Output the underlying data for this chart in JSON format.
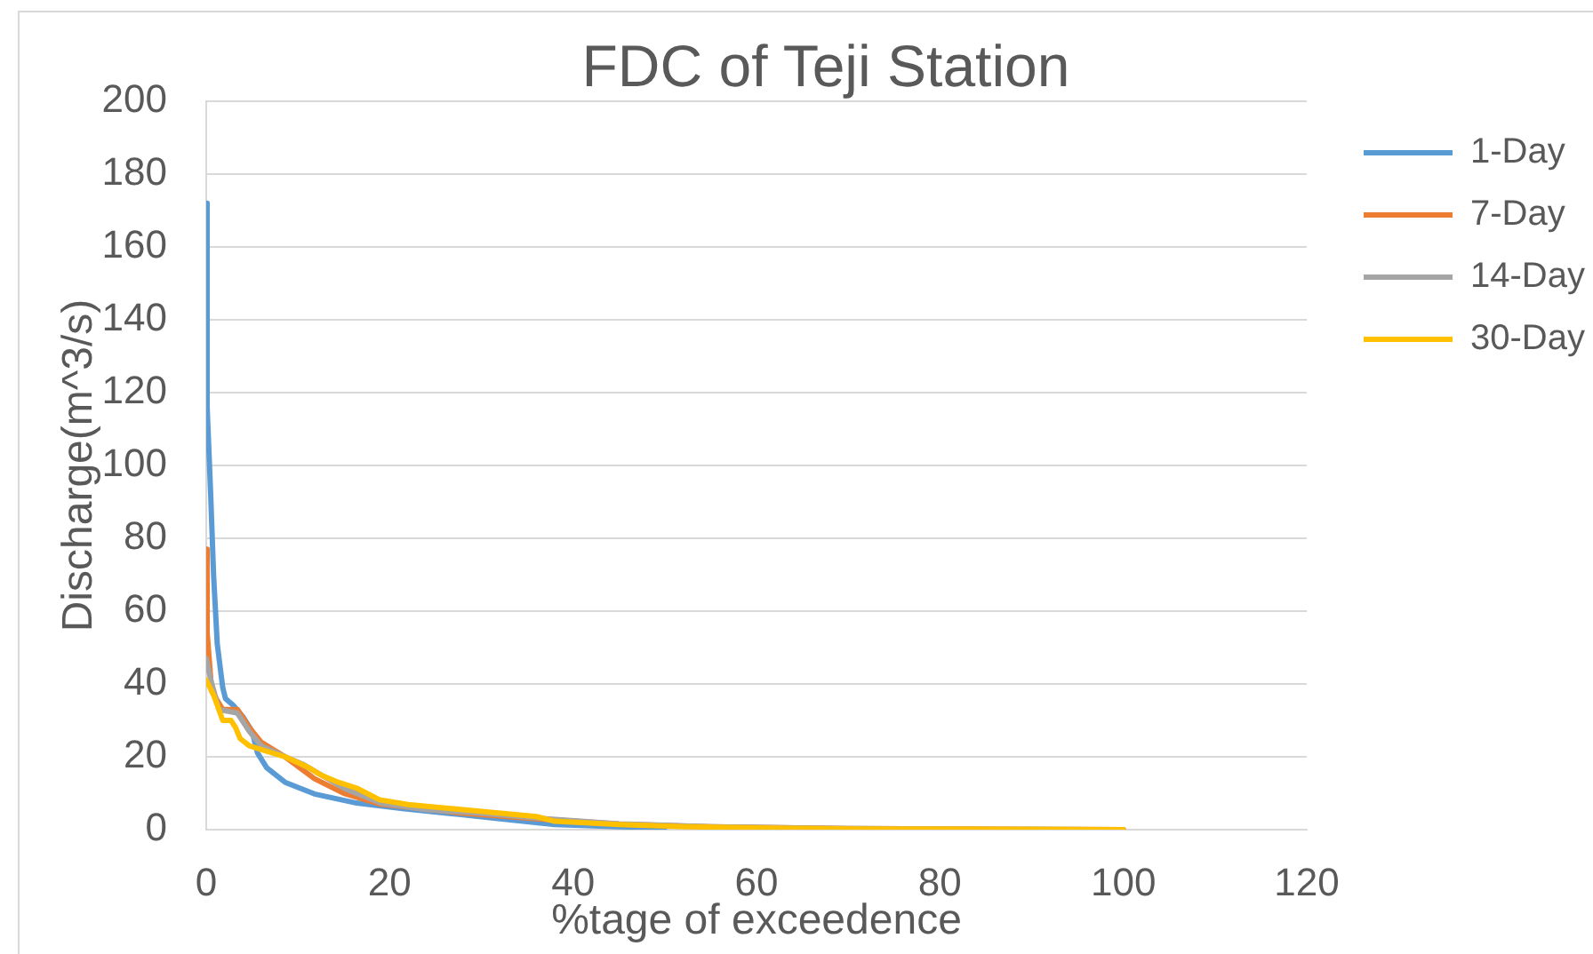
{
  "chart_data": {
    "type": "line",
    "title": "FDC of Teji Station",
    "xlabel": "%tage of exceedence",
    "ylabel": "Discharge(m^3/s)",
    "xlim": [
      0,
      120
    ],
    "xticks": [
      0,
      20,
      40,
      60,
      80,
      100,
      120
    ],
    "ylim": [
      0,
      200
    ],
    "yticks": [
      0,
      20,
      40,
      60,
      80,
      100,
      120,
      140,
      160,
      180,
      200
    ],
    "grid": "y",
    "legend": "right",
    "series": [
      {
        "name": "1-Day",
        "color": "#5b9bd5",
        "x": [
          0,
          0.1,
          0.5,
          0.8,
          1.2,
          1.8,
          2.1,
          3,
          4,
          5,
          5.6,
          6.6,
          8.6,
          11.8,
          16.4,
          21.6,
          28,
          32,
          38,
          45,
          50
        ],
        "values": [
          172,
          116,
          91,
          70,
          51,
          39,
          36,
          34,
          31,
          27,
          21,
          17,
          13,
          9.8,
          7.3,
          5.7,
          4.1,
          3,
          1.4,
          0.8,
          0.5
        ]
      },
      {
        "name": "7-Day",
        "color": "#ed7d31",
        "x": [
          0,
          0.1,
          0.6,
          1.8,
          3.4,
          4.7,
          6,
          8.6,
          11.8,
          15,
          19,
          28,
          36,
          45,
          55,
          70,
          85,
          100
        ],
        "values": [
          77,
          54,
          38,
          33,
          33,
          28,
          24,
          20,
          14,
          10,
          7,
          4.5,
          3,
          1.5,
          0.8,
          0.3,
          0.1,
          0
        ]
      },
      {
        "name": "14-Day",
        "color": "#a5a5a5",
        "x": [
          0,
          0.5,
          1.4,
          3.4,
          4.7,
          6,
          8.6,
          10.5,
          15,
          19,
          24,
          30,
          36,
          45,
          55,
          70,
          85,
          100
        ],
        "values": [
          47,
          41,
          33,
          32,
          27,
          23,
          20,
          18,
          11.4,
          7.3,
          5.5,
          4.5,
          3.2,
          1.6,
          0.8,
          0.3,
          0.1,
          0
        ]
      },
      {
        "name": "30-Day",
        "color": "#ffc000",
        "x": [
          0,
          0.8,
          1.8,
          2.7,
          3.2,
          3.7,
          4.7,
          6,
          8.6,
          11.2,
          12.5,
          14.4,
          16.4,
          18.9,
          22,
          28,
          36,
          38,
          45,
          51,
          60,
          71,
          85,
          100
        ],
        "values": [
          41,
          37,
          30,
          30,
          28,
          25,
          23,
          22,
          20,
          17,
          15,
          13,
          11.4,
          8.2,
          6.9,
          5.5,
          3.6,
          2.3,
          1.4,
          0.9,
          0.5,
          0.2,
          0.1,
          0
        ]
      }
    ]
  }
}
